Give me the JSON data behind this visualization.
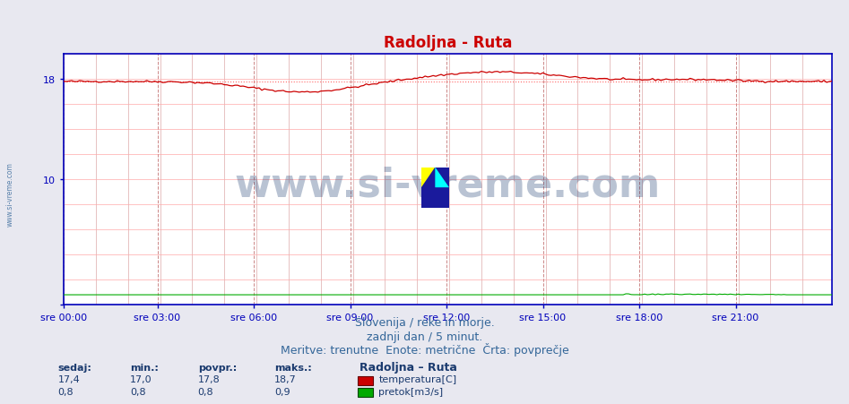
{
  "title": "Radoljna - Ruta",
  "title_color": "#cc0000",
  "bg_color": "#e8e8f0",
  "plot_bg_color": "#ffffff",
  "grid_color_v_minor": "#ddaaaa",
  "grid_color_v_major": "#cc8888",
  "grid_color_h": "#ffaaaa",
  "axis_color": "#0000bb",
  "tick_label_color": "#336699",
  "ylabel_left_range": [
    0,
    20
  ],
  "ytick_vals": [
    0,
    10,
    18
  ],
  "ytick_labels": [
    "",
    "10",
    "18"
  ],
  "x_ticks_labels": [
    "sre 00:00",
    "sre 03:00",
    "sre 06:00",
    "sre 09:00",
    "sre 12:00",
    "sre 15:00",
    "sre 18:00",
    "sre 21:00"
  ],
  "x_ticks_pos_frac": [
    0.0,
    0.125,
    0.25,
    0.375,
    0.5,
    0.625,
    0.75,
    0.875
  ],
  "total_points": 288,
  "temp_avg": 17.8,
  "temp_line_color": "#cc0000",
  "temp_avg_line_color": "#ff6666",
  "flow_line_color": "#00aa00",
  "watermark_text": "www.si-vreme.com",
  "watermark_color": "#1a3a6e",
  "watermark_alpha": 0.3,
  "watermark_fontsize": 32,
  "subtitle1": "Slovenija / reke in morje.",
  "subtitle2": "zadnji dan / 5 minut.",
  "subtitle3": "Meritve: trenutne  Enote: metrične  Črta: povprečje",
  "subtitle_color": "#336699",
  "subtitle_fontsize": 9,
  "legend_title": "Radoljna – Ruta",
  "legend_color": "#1a3a6e",
  "sidewatermark": "www.si-vreme.com",
  "left_label_color": "#336699",
  "temp_color_box": "#cc0000",
  "flow_color_box": "#00aa00",
  "sedaj_temp": "17,4",
  "min_temp": "17,0",
  "povpr_temp": "17,8",
  "maks_temp": "18,7",
  "sedaj_flow": "0,8",
  "min_flow": "0,8",
  "povpr_flow": "0,8",
  "maks_flow": "0,9"
}
